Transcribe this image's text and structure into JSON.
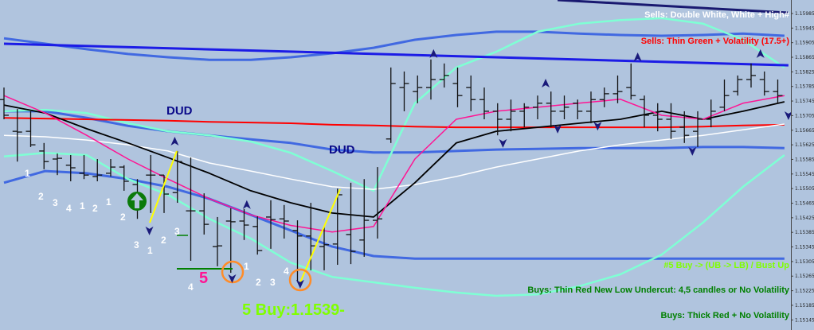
{
  "chart_data": {
    "type": "ohlc",
    "title": "",
    "colors": {
      "background": "#b0c4de",
      "upper_trend": "#1c1ce6",
      "top_trend": "#191970",
      "bands": "#4169e1",
      "outer_bands": "#7fffd4",
      "red_ma": "#ff0000",
      "white_ma": "#ffffff",
      "black_ma": "#000000",
      "pink_ma": "#ff1493",
      "marker": "#1a1a7a"
    },
    "yaxis": {
      "position": "right",
      "ylim": [
        1.15145,
        1.15985
      ],
      "ticks": [
        "1.15985",
        "1.15945",
        "1.15905",
        "1.15865",
        "1.15825",
        "1.15785",
        "1.15745",
        "1.15705",
        "1.15665",
        "1.15625",
        "1.15585",
        "1.15545",
        "1.15505",
        "1.15465",
        "1.15425",
        "1.15385",
        "1.15345",
        "1.15305",
        "1.15265",
        "1.15225",
        "1.15185",
        "1.15145"
      ]
    },
    "candles": [
      [
        1.15782,
        1.15695,
        1.15749,
        1.15706
      ],
      [
        1.15723,
        1.15579,
        1.15662,
        1.1566
      ],
      [
        1.15717,
        1.15619,
        1.15662,
        1.15625
      ],
      [
        1.1563,
        1.15558,
        1.15608,
        1.15579
      ],
      [
        1.15601,
        1.15542,
        1.15586,
        1.15588
      ],
      [
        1.15597,
        1.15525,
        1.15569,
        1.15562
      ],
      [
        1.15597,
        1.15531,
        1.15547,
        1.15542
      ],
      [
        1.15586,
        1.15525,
        1.15538,
        1.15542
      ],
      [
        1.15586,
        1.15538,
        1.15547,
        1.15564
      ],
      [
        1.15569,
        1.15499,
        1.15564,
        1.15525
      ],
      [
        1.15531,
        1.15422,
        1.15516,
        1.15462
      ],
      [
        1.15597,
        1.15438,
        1.15542,
        1.15542
      ],
      [
        1.15542,
        1.15438,
        1.15542,
        1.1549
      ],
      [
        1.15608,
        1.15466,
        1.15494,
        1.15579
      ],
      [
        1.1559,
        1.15307,
        1.15444,
        1.15444
      ],
      [
        1.15492,
        1.15379,
        1.15444,
        1.15407
      ],
      [
        1.15427,
        1.15292,
        1.15346,
        1.15348
      ],
      [
        1.15451,
        1.15274,
        1.15416,
        1.15414
      ],
      [
        1.15449,
        1.15364,
        1.15416,
        1.15405
      ],
      [
        1.15429,
        1.15324,
        1.15401,
        1.15335
      ],
      [
        1.15473,
        1.1534,
        1.15427,
        1.1542
      ],
      [
        1.1546,
        1.15368,
        1.15422,
        1.15416
      ],
      [
        1.15418,
        1.15252,
        1.1539,
        1.15375
      ],
      [
        1.15466,
        1.15281,
        1.15375,
        1.15348
      ],
      [
        1.15401,
        1.15281,
        1.15346,
        1.15351
      ],
      [
        1.15505,
        1.15296,
        1.15353,
        1.15488
      ],
      [
        1.15521,
        1.15298,
        1.15379,
        1.15333
      ],
      [
        1.15531,
        1.15318,
        1.15364,
        1.15418
      ],
      [
        1.15564,
        1.15368,
        1.15418,
        1.15422
      ],
      [
        1.15837,
        1.1563,
        1.15641,
        1.15793
      ],
      [
        1.15826,
        1.15717,
        1.15782,
        1.15793
      ],
      [
        1.15815,
        1.15739,
        1.15771,
        1.15782
      ],
      [
        1.15859,
        1.15749,
        1.15782,
        1.15804
      ],
      [
        1.15848,
        1.15782,
        1.15804,
        1.15815
      ],
      [
        1.15837,
        1.15728,
        1.15793,
        1.1576
      ],
      [
        1.15815,
        1.15717,
        1.15782,
        1.15749
      ],
      [
        1.15782,
        1.15695,
        1.15749,
        1.15717
      ],
      [
        1.15739,
        1.15651,
        1.15717,
        1.15695
      ],
      [
        1.15749,
        1.15662,
        1.15695,
        1.15717
      ],
      [
        1.15739,
        1.15673,
        1.15717,
        1.15728
      ],
      [
        1.1576,
        1.15695,
        1.15728,
        1.15739
      ],
      [
        1.15771,
        1.15673,
        1.15739,
        1.15717
      ],
      [
        1.1576,
        1.15695,
        1.15717,
        1.15728
      ],
      [
        1.15749,
        1.15695,
        1.15739,
        1.15717
      ],
      [
        1.15771,
        1.15684,
        1.15717,
        1.15749
      ],
      [
        1.15782,
        1.15728,
        1.15749,
        1.15765
      ],
      [
        1.15815,
        1.15739,
        1.15765,
        1.15771
      ],
      [
        1.15848,
        1.15749,
        1.15782,
        1.1576
      ],
      [
        1.1576,
        1.15673,
        1.15749,
        1.15706
      ],
      [
        1.15739,
        1.15662,
        1.15706,
        1.15695
      ],
      [
        1.15739,
        1.15641,
        1.15695,
        1.15662
      ],
      [
        1.15717,
        1.1563,
        1.15673,
        1.15651
      ],
      [
        1.15717,
        1.15619,
        1.15662,
        1.15695
      ],
      [
        1.15749,
        1.15673,
        1.15695,
        1.15717
      ],
      [
        1.15804,
        1.15717,
        1.15728,
        1.1576
      ],
      [
        1.15815,
        1.1576,
        1.15771,
        1.15804
      ],
      [
        1.15848,
        1.15782,
        1.15804,
        1.15815
      ],
      [
        1.15826,
        1.1576,
        1.15804,
        1.15771
      ],
      [
        1.15804,
        1.15739,
        1.15771,
        1.1576
      ]
    ],
    "line_x": [
      0,
      3.1,
      6.2,
      9.3,
      12.3,
      15.4,
      18.5,
      21.5,
      24.6,
      27.7,
      30.8,
      33.9,
      36.9,
      40,
      43.1,
      46.2,
      49.3,
      52.4,
      55.4,
      58.5
    ],
    "lines": [
      {
        "key": "upper_band",
        "color": "#4169e1",
        "width": 3,
        "y": [
          1.15917,
          1.15902,
          1.15887,
          1.15874,
          1.15865,
          1.15858,
          1.15858,
          1.15865,
          1.15876,
          1.15891,
          1.15913,
          1.15926,
          1.15935,
          1.15935,
          1.1593,
          1.15926,
          1.15924,
          1.15926,
          1.1593,
          1.15924
        ]
      },
      {
        "key": "middle_band",
        "color": "#4169e1",
        "width": 3,
        "y": [
          1.15717,
          1.15717,
          1.15699,
          1.15677,
          1.15662,
          1.15651,
          1.1564,
          1.1563,
          1.15612,
          1.15604,
          1.15604,
          1.15608,
          1.15612,
          1.15614,
          1.15616,
          1.15616,
          1.15616,
          1.15619,
          1.15619,
          1.15616
        ]
      },
      {
        "key": "lower_band",
        "color": "#4169e1",
        "width": 3,
        "y": [
          1.15521,
          1.15553,
          1.15547,
          1.15531,
          1.1551,
          1.15477,
          1.15433,
          1.1539,
          1.15346,
          1.1532,
          1.15313,
          1.15313,
          1.15313,
          1.15313,
          1.15313,
          1.15313,
          1.15313,
          1.15313,
          1.15313,
          1.15313
        ]
      },
      {
        "key": "outer_upper",
        "color": "#7fffd4",
        "width": 2.5,
        "y": [
          1.15717,
          1.15721,
          1.15712,
          1.15684,
          1.15662,
          1.15651,
          1.15634,
          1.15603,
          1.15553,
          1.15499,
          1.15739,
          1.15837,
          1.1588,
          1.15935,
          1.15957,
          1.15967,
          1.15972,
          1.15957,
          1.15913,
          1.15837
        ]
      },
      {
        "key": "outer_lower",
        "color": "#7fffd4",
        "width": 2.5,
        "y": [
          1.15593,
          1.15603,
          1.15597,
          1.15531,
          1.15488,
          1.15422,
          1.15368,
          1.15302,
          1.15263,
          1.15248,
          1.15233,
          1.1522,
          1.15211,
          1.15215,
          1.15237,
          1.1527,
          1.15324,
          1.15412,
          1.1551,
          1.15597
        ]
      },
      {
        "key": "red_ma",
        "color": "#ff0000",
        "width": 2,
        "y": [
          1.15699,
          1.15697,
          1.15695,
          1.15693,
          1.15691,
          1.15688,
          1.15686,
          1.15684,
          1.1568,
          1.15678,
          1.15675,
          1.15673,
          1.15673,
          1.15673,
          1.15673,
          1.15673,
          1.15673,
          1.15675,
          1.15678,
          1.1568
        ]
      },
      {
        "key": "white_ma",
        "color": "#ffffff",
        "width": 1.5,
        "y": [
          1.15651,
          1.15647,
          1.15638,
          1.15625,
          1.15608,
          1.15575,
          1.15553,
          1.15531,
          1.1551,
          1.15503,
          1.15516,
          1.15538,
          1.15564,
          1.15586,
          1.15608,
          1.15625,
          1.15638,
          1.15651,
          1.15666,
          1.15682
        ]
      },
      {
        "key": "black_ma",
        "color": "#000000",
        "width": 1.8,
        "y": [
          1.15734,
          1.15712,
          1.15669,
          1.1563,
          1.1559,
          1.15547,
          1.15499,
          1.15466,
          1.15438,
          1.15427,
          1.15521,
          1.1563,
          1.15662,
          1.15673,
          1.15684,
          1.15695,
          1.15717,
          1.15695,
          1.15717,
          1.15743
        ]
      },
      {
        "key": "pink_ma",
        "color": "#ff1493",
        "width": 1.5,
        "y": [
          1.1576,
          1.15712,
          1.15651,
          1.15586,
          1.15531,
          1.15477,
          1.15433,
          1.15404,
          1.15386,
          1.15401,
          1.15586,
          1.15695,
          1.15717,
          1.15728,
          1.15739,
          1.1575,
          1.15706,
          1.15695,
          1.15739,
          1.1576
        ]
      }
    ],
    "trend_lines": [
      {
        "key": "upper_trend",
        "color": "#1c1ce6",
        "width": 3,
        "x": [
          0,
          58.8
        ],
        "y": [
          1.15902,
          1.15843
        ]
      },
      {
        "key": "top_trend",
        "color": "#191970",
        "width": 3,
        "x": [
          41.5,
          58.8
        ],
        "y": [
          1.16022,
          1.15987
        ]
      }
    ],
    "up_markers": [
      [
        12.8,
        1.15634
      ],
      [
        18.2,
        1.1546
      ],
      [
        32.2,
        1.15874
      ],
      [
        40.6,
        1.15793
      ],
      [
        47.5,
        1.15865
      ],
      [
        56.7,
        1.15874
      ]
    ],
    "down_markers": [
      [
        10.9,
        1.1539
      ],
      [
        17.1,
        1.15259
      ],
      [
        22.2,
        1.15244
      ],
      [
        37.4,
        1.1563
      ],
      [
        41.5,
        1.15669
      ],
      [
        44.5,
        1.15677
      ],
      [
        51.6,
        1.15608
      ],
      [
        58.8,
        1.15706
      ]
    ],
    "annotations": {
      "dud": [
        "DUD",
        "DUD"
      ],
      "counts": [
        "1",
        "2",
        "3",
        "4",
        "1",
        "2",
        "1",
        "2",
        "3",
        "1",
        "2",
        "3",
        "4",
        "1",
        "2",
        "3",
        "4"
      ],
      "five": "5",
      "buy_label": "5 Buy:1.1539-",
      "notes": [
        {
          "text": "Sells: Double White, White + High#",
          "color": "#ffffff"
        },
        {
          "text": "Sells: Thin Green + Volatility (17.5+)",
          "color": "#ff0000"
        },
        {
          "text": "#5 Buy -> (UB -> LB) / Bust Up",
          "color": "#7fff00"
        },
        {
          "text": "Buys: Thin Red New Low Undercut: 4,5 candles or No Volatility",
          "color": "#008000"
        },
        {
          "text": "Buys: Thick Red + No Volatility",
          "color": "#008000"
        }
      ]
    }
  }
}
